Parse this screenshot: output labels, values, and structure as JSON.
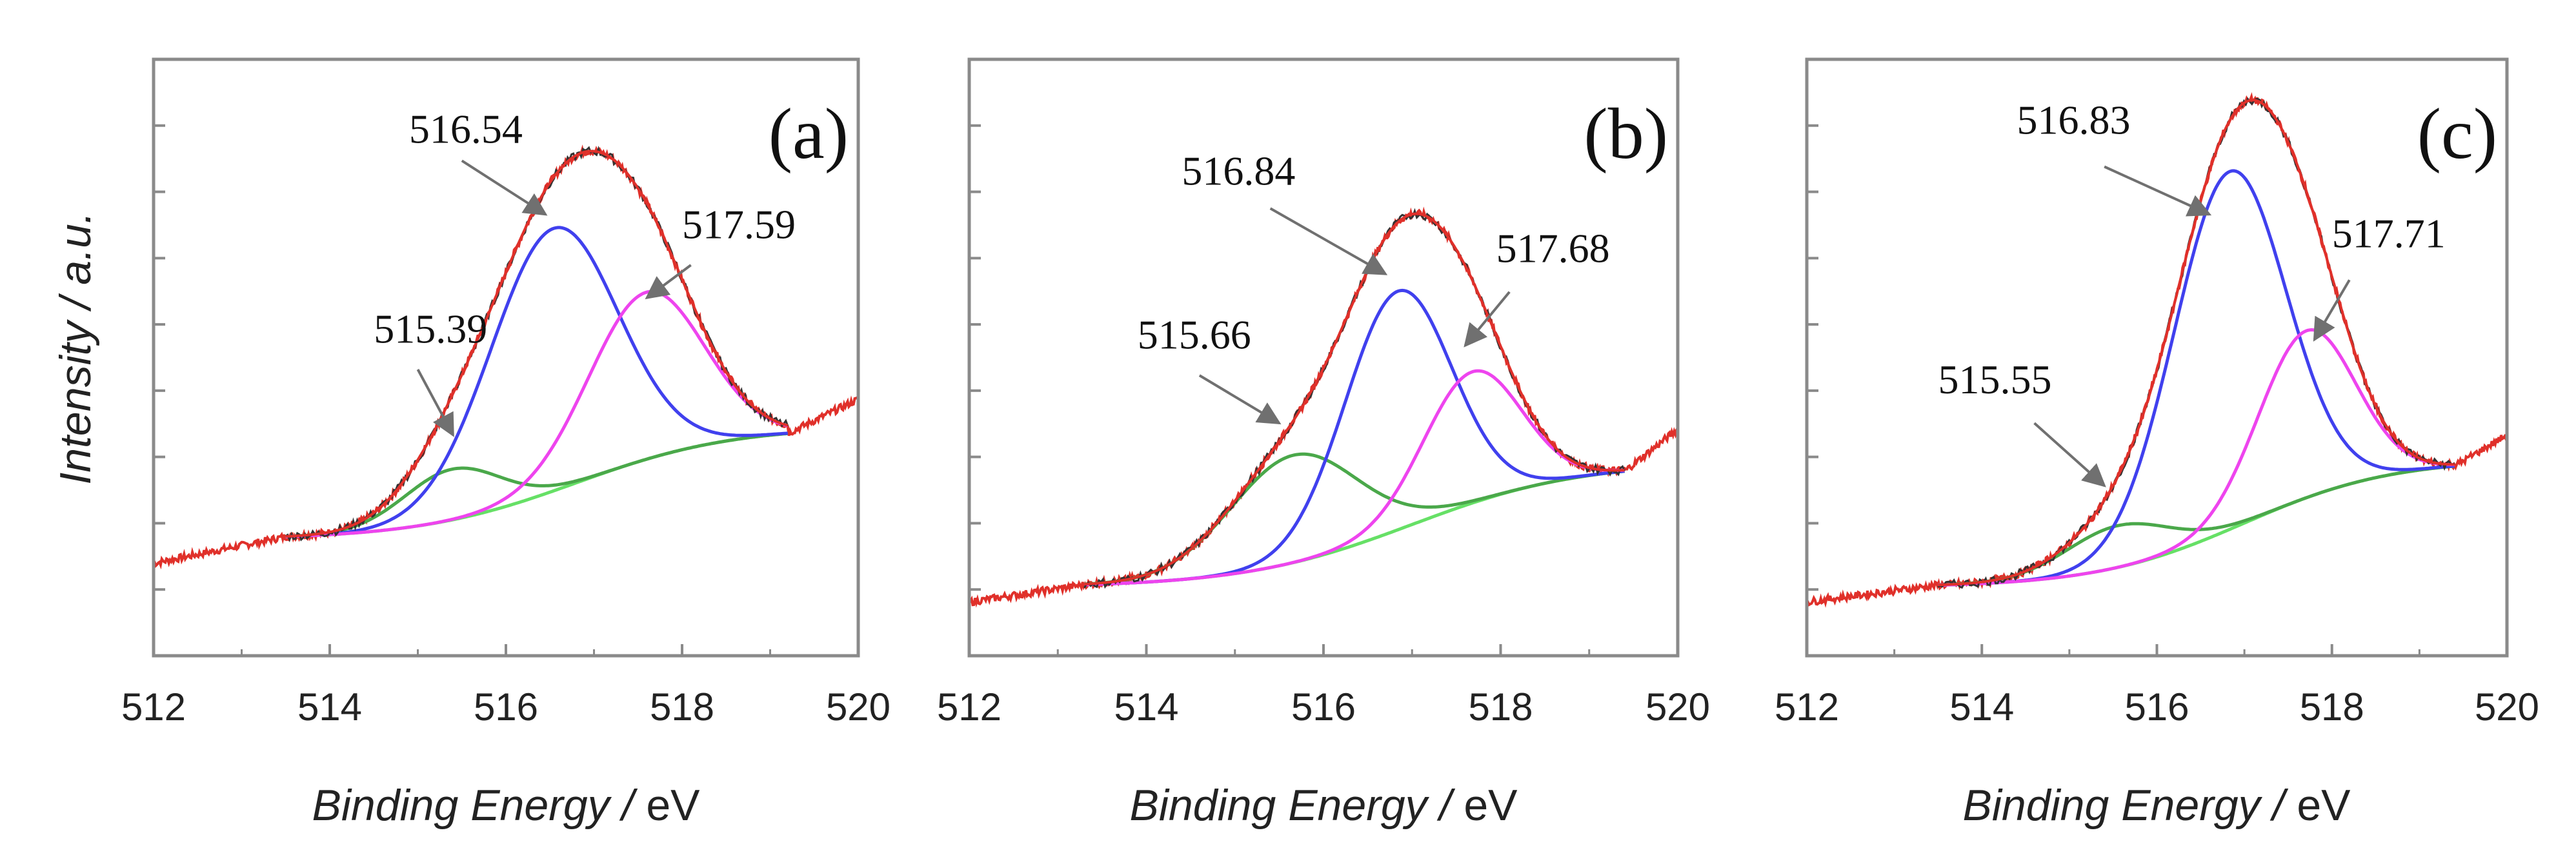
{
  "colors": {
    "raw": "#e0302a",
    "noise": "#333333",
    "envelope": "#e0302a",
    "background": "#66e066",
    "peak1": "#4aa84a",
    "peak2": "#4040ee",
    "peak3": "#ee44ee",
    "arrow": "#707070",
    "frame": "#8a8a8a"
  },
  "chart_data": [
    {
      "type": "line",
      "panel_label": "(a)",
      "xlabel_main": "Binding Energy / ",
      "xlabel_unit": "eV",
      "ylabel": "Intensity / a.u.",
      "xlim": [
        512,
        520
      ],
      "ylim": [
        0,
        1
      ],
      "xticks": [
        512,
        514,
        516,
        518,
        520
      ],
      "xtick_labels": [
        "512",
        "514",
        "516",
        "518",
        "520"
      ],
      "fit_range": [
        513.5,
        519.2
      ],
      "background": {
        "low": 0.195,
        "high": 0.385,
        "center": 516.8,
        "width": 0.9
      },
      "raw_edges": {
        "left": 0.155,
        "right": 0.43
      },
      "peaks": [
        {
          "label": "515.39",
          "center": 515.39,
          "height": 0.085,
          "sigma": 0.55,
          "label_pos": [
            514.5,
            0.525
          ],
          "arrow_from": [
            515.0,
            0.48
          ],
          "arrow_to": [
            515.4,
            0.37
          ]
        },
        {
          "label": "516.54",
          "center": 516.54,
          "height": 0.44,
          "sigma": 0.72,
          "label_pos": [
            514.9,
            0.86
          ],
          "arrow_from": [
            515.5,
            0.83
          ],
          "arrow_to": [
            516.45,
            0.74
          ]
        },
        {
          "label": "517.59",
          "center": 517.59,
          "height": 0.28,
          "sigma": 0.65,
          "label_pos": [
            518.0,
            0.7
          ],
          "arrow_from": [
            518.1,
            0.655
          ],
          "arrow_to": [
            517.6,
            0.6
          ]
        }
      ]
    },
    {
      "type": "line",
      "panel_label": "(b)",
      "xlabel_main": "Binding Energy / ",
      "xlabel_unit": "eV",
      "ylabel": "Intensity / a.u.",
      "xlim": [
        512,
        520
      ],
      "ylim": [
        0,
        1
      ],
      "xticks": [
        512,
        514,
        516,
        518,
        520
      ],
      "xtick_labels": [
        "512",
        "514",
        "516",
        "518",
        "520"
      ],
      "fit_range": [
        513.3,
        519.4
      ],
      "background": {
        "low": 0.115,
        "high": 0.325,
        "center": 517.0,
        "width": 0.95
      },
      "raw_edges": {
        "left": 0.09,
        "right": 0.38
      },
      "peaks": [
        {
          "label": "515.66",
          "center": 515.66,
          "height": 0.18,
          "sigma": 0.72,
          "label_pos": [
            513.9,
            0.515
          ],
          "arrow_from": [
            514.6,
            0.47
          ],
          "arrow_to": [
            515.5,
            0.39
          ]
        },
        {
          "label": "516.84",
          "center": 516.84,
          "height": 0.4,
          "sigma": 0.6,
          "label_pos": [
            514.4,
            0.79
          ],
          "arrow_from": [
            515.4,
            0.75
          ],
          "arrow_to": [
            516.7,
            0.64
          ]
        },
        {
          "label": "517.68",
          "center": 517.68,
          "height": 0.22,
          "sigma": 0.55,
          "label_pos": [
            517.95,
            0.66
          ],
          "arrow_from": [
            518.1,
            0.61
          ],
          "arrow_to": [
            517.6,
            0.52
          ]
        }
      ]
    },
    {
      "type": "line",
      "panel_label": "(c)",
      "xlabel_main": "Binding Energy / ",
      "xlabel_unit": "eV",
      "ylabel": "Intensity / a.u.",
      "xlim": [
        512,
        520
      ],
      "ylim": [
        0,
        1
      ],
      "xticks": [
        512,
        514,
        516,
        518,
        520
      ],
      "xtick_labels": [
        "512",
        "514",
        "516",
        "518",
        "520"
      ],
      "fit_range": [
        513.5,
        519.4
      ],
      "background": {
        "low": 0.115,
        "high": 0.33,
        "center": 517.0,
        "width": 0.85
      },
      "raw_edges": {
        "left": 0.09,
        "right": 0.37
      },
      "peaks": [
        {
          "label": "515.55",
          "center": 515.55,
          "height": 0.07,
          "sigma": 0.6,
          "label_pos": [
            513.5,
            0.44
          ],
          "arrow_from": [
            514.6,
            0.39
          ],
          "arrow_to": [
            515.4,
            0.285
          ]
        },
        {
          "label": "516.83",
          "center": 516.83,
          "height": 0.6,
          "sigma": 0.64,
          "label_pos": [
            514.4,
            0.875
          ],
          "arrow_from": [
            515.4,
            0.82
          ],
          "arrow_to": [
            516.6,
            0.74
          ]
        },
        {
          "label": "517.71",
          "center": 517.71,
          "height": 0.28,
          "sigma": 0.55,
          "label_pos": [
            518.0,
            0.685
          ],
          "arrow_from": [
            518.2,
            0.63
          ],
          "arrow_to": [
            517.8,
            0.53
          ]
        }
      ]
    }
  ]
}
